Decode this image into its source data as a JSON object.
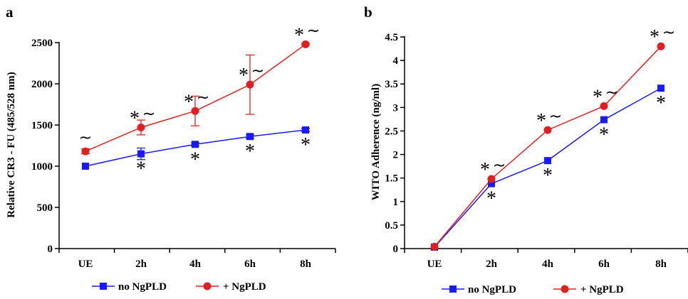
{
  "chart_data": [
    {
      "panel": "a",
      "type": "line",
      "categories": [
        "UE",
        "2h",
        "4h",
        "6h",
        "8h"
      ],
      "ylabel": "Relative CR3 - FU (485/528 nm)",
      "ylim": [
        0,
        2500
      ],
      "yticks": [
        "0",
        "500",
        "1000",
        "1500",
        "2000",
        "2500"
      ],
      "grid": false,
      "legend_position": "bottom-center",
      "series": [
        {
          "name": "no NgPLD",
          "color": "#1a1aff",
          "marker": "square",
          "values": [
            1000,
            1150,
            1265,
            1360,
            1440
          ],
          "errors": [
            0,
            70,
            20,
            20,
            20
          ],
          "annotations": [
            "",
            "*",
            "*",
            "*",
            "*"
          ]
        },
        {
          "name": "+ NgPLD",
          "color": "#e02020",
          "marker": "circle",
          "values": [
            1180,
            1470,
            1670,
            1990,
            2480
          ],
          "errors": [
            30,
            90,
            180,
            360,
            10
          ],
          "annotations": [
            "~",
            "* ~",
            "* ~",
            "* ~",
            "* ~"
          ]
        }
      ]
    },
    {
      "panel": "b",
      "type": "line",
      "categories": [
        "UE",
        "2h",
        "4h",
        "6h",
        "8h"
      ],
      "ylabel": "WITO Adherence (ng/ml)",
      "ylim": [
        0,
        4.5
      ],
      "yticks": [
        "0",
        "0.5",
        "1",
        "1.5",
        "2",
        "2.5",
        "3",
        "3.5",
        "4",
        "4.5"
      ],
      "grid": false,
      "legend_position": "bottom-center",
      "series": [
        {
          "name": "no NgPLD",
          "color": "#1a1aff",
          "marker": "square",
          "values": [
            0.03,
            1.38,
            1.87,
            2.74,
            3.41
          ],
          "errors": [
            0,
            0,
            0,
            0,
            0
          ],
          "annotations": [
            "",
            "*",
            "*",
            "*",
            "*"
          ]
        },
        {
          "name": "+ NgPLD",
          "color": "#e02020",
          "marker": "circle",
          "values": [
            0.04,
            1.48,
            2.52,
            3.03,
            4.3
          ],
          "errors": [
            0,
            0,
            0,
            0,
            0
          ],
          "annotations": [
            "",
            "* ~",
            "* ~",
            "* ~",
            "* ~"
          ]
        }
      ]
    }
  ]
}
